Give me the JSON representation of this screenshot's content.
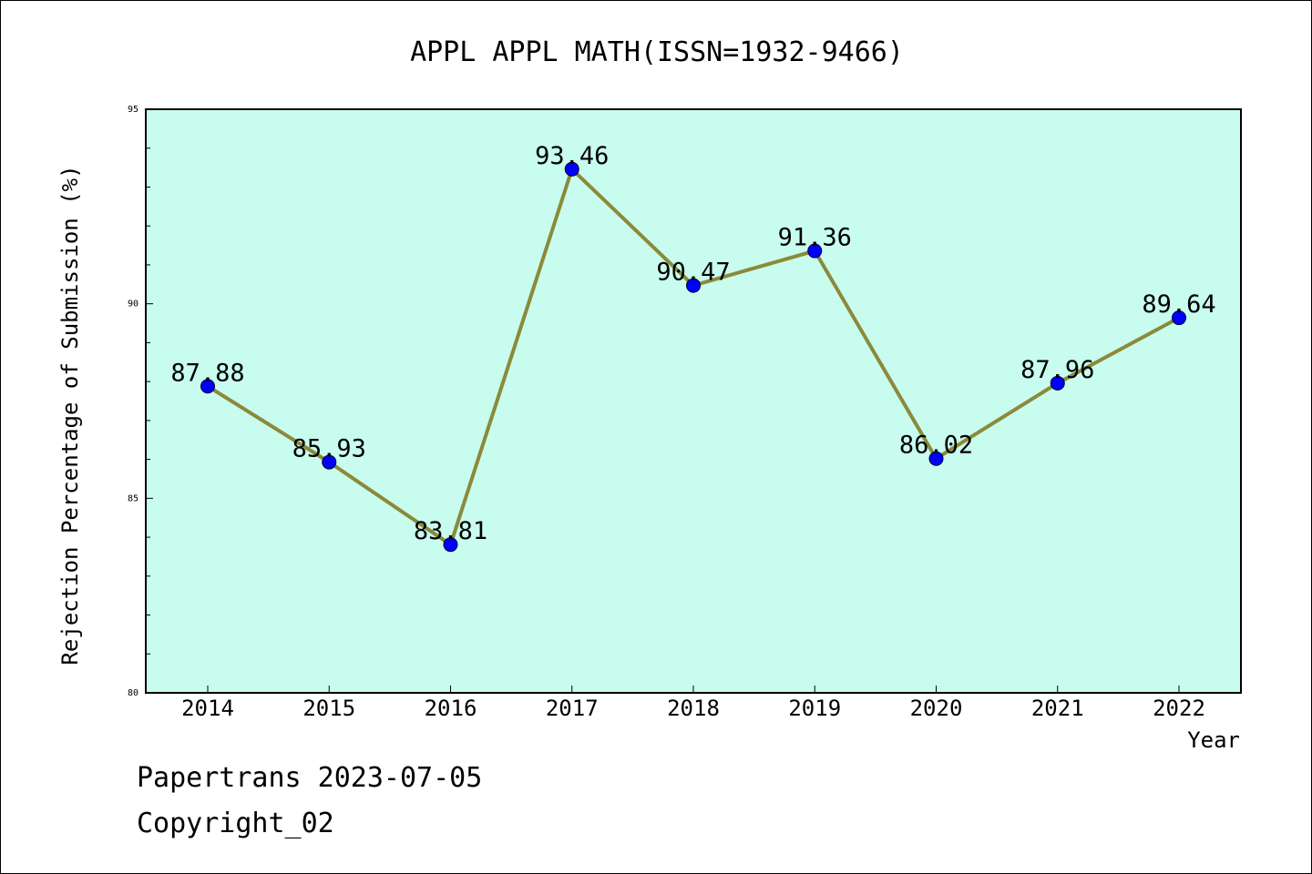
{
  "chart_data": {
    "type": "line",
    "title": "APPL APPL MATH(ISSN=1932-9466)",
    "xlabel": "Year",
    "ylabel": "Rejection Percentage of Submission (%)",
    "x": [
      "2014",
      "2015",
      "2016",
      "2017",
      "2018",
      "2019",
      "2020",
      "2021",
      "2022"
    ],
    "values": [
      87.88,
      85.93,
      83.81,
      93.46,
      90.47,
      91.36,
      86.02,
      87.96,
      89.64
    ],
    "data_labels": [
      "87.88",
      "85.93",
      "83.81",
      "93.46",
      "90.47",
      "91.36",
      "86.02",
      "87.96",
      "89.64"
    ],
    "ylim": [
      80,
      95
    ],
    "yticks": [
      "80",
      "85",
      "90",
      "95"
    ],
    "grid": false,
    "legend": "none",
    "colors": {
      "plot_background": "#c8fcee",
      "line": "#8b8a3a",
      "marker": "#0000ff"
    }
  },
  "footer": {
    "line1": "Papertrans 2023-07-05",
    "line2": "Copyright_02"
  }
}
